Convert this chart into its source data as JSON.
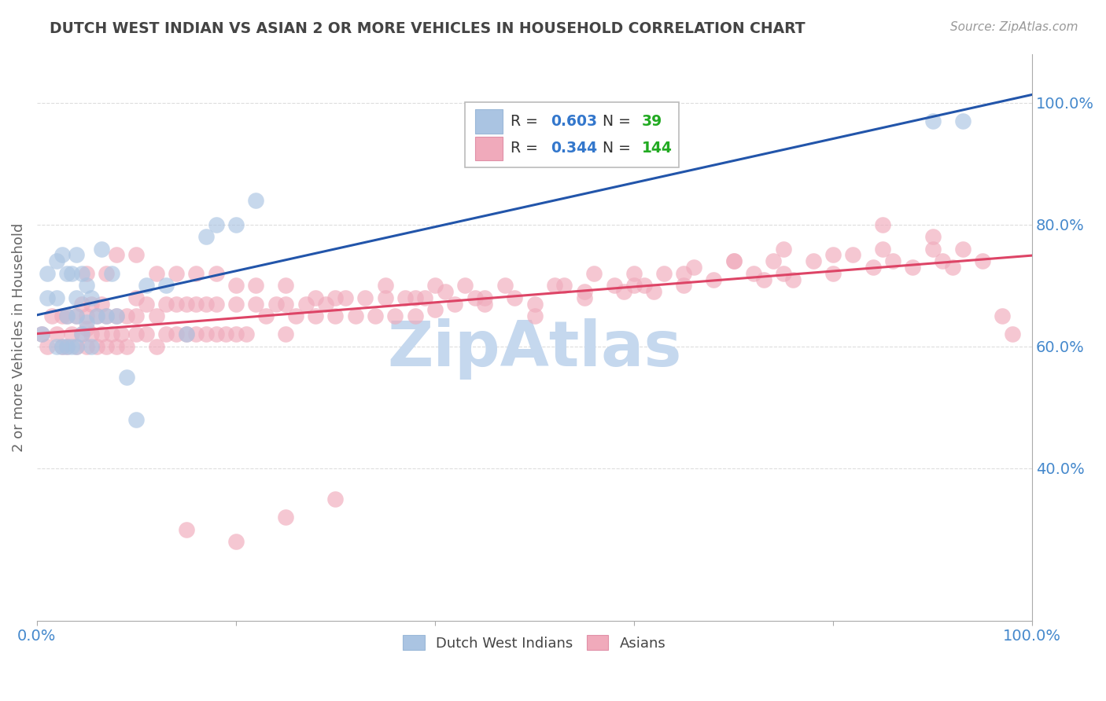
{
  "title": "DUTCH WEST INDIAN VS ASIAN 2 OR MORE VEHICLES IN HOUSEHOLD CORRELATION CHART",
  "source": "Source: ZipAtlas.com",
  "ylabel": "2 or more Vehicles in Household",
  "xlim": [
    0.0,
    1.0
  ],
  "ylim": [
    0.15,
    1.08
  ],
  "xtick_labels": [
    "0.0%",
    "",
    "",
    "",
    "",
    "100.0%"
  ],
  "xtick_vals": [
    0.0,
    0.2,
    0.4,
    0.6,
    0.8,
    1.0
  ],
  "ytick_labels": [
    "40.0%",
    "60.0%",
    "80.0%",
    "100.0%"
  ],
  "ytick_vals": [
    0.4,
    0.6,
    0.8,
    1.0
  ],
  "blue_R": 0.603,
  "blue_N": 39,
  "pink_R": 0.344,
  "pink_N": 144,
  "blue_color": "#aac4e2",
  "pink_color": "#f0aabb",
  "blue_line_color": "#2255aa",
  "pink_line_color": "#dd4466",
  "legend_R_color": "#3377cc",
  "legend_N_color": "#22aa22",
  "axis_tick_color": "#4488cc",
  "background_color": "#ffffff",
  "grid_color": "#dddddd",
  "title_color": "#444444",
  "watermark_color": "#c5d8ee",
  "blue_x": [
    0.005,
    0.01,
    0.01,
    0.02,
    0.02,
    0.02,
    0.025,
    0.025,
    0.03,
    0.03,
    0.03,
    0.035,
    0.035,
    0.04,
    0.04,
    0.04,
    0.04,
    0.045,
    0.045,
    0.05,
    0.05,
    0.055,
    0.055,
    0.06,
    0.065,
    0.07,
    0.075,
    0.08,
    0.09,
    0.1,
    0.11,
    0.13,
    0.15,
    0.17,
    0.18,
    0.2,
    0.22,
    0.9,
    0.93
  ],
  "blue_y": [
    0.62,
    0.68,
    0.72,
    0.6,
    0.68,
    0.74,
    0.6,
    0.75,
    0.6,
    0.65,
    0.72,
    0.6,
    0.72,
    0.6,
    0.65,
    0.68,
    0.75,
    0.62,
    0.72,
    0.64,
    0.7,
    0.6,
    0.68,
    0.65,
    0.76,
    0.65,
    0.72,
    0.65,
    0.55,
    0.48,
    0.7,
    0.7,
    0.62,
    0.78,
    0.8,
    0.8,
    0.84,
    0.97,
    0.97
  ],
  "pink_x": [
    0.005,
    0.01,
    0.015,
    0.02,
    0.025,
    0.025,
    0.03,
    0.03,
    0.035,
    0.04,
    0.04,
    0.045,
    0.045,
    0.05,
    0.05,
    0.05,
    0.055,
    0.055,
    0.06,
    0.06,
    0.065,
    0.065,
    0.07,
    0.07,
    0.075,
    0.08,
    0.08,
    0.085,
    0.09,
    0.09,
    0.1,
    0.1,
    0.1,
    0.11,
    0.11,
    0.12,
    0.12,
    0.13,
    0.13,
    0.14,
    0.14,
    0.15,
    0.15,
    0.16,
    0.16,
    0.17,
    0.17,
    0.18,
    0.18,
    0.19,
    0.2,
    0.2,
    0.21,
    0.22,
    0.23,
    0.24,
    0.25,
    0.25,
    0.26,
    0.27,
    0.28,
    0.29,
    0.3,
    0.31,
    0.32,
    0.33,
    0.34,
    0.35,
    0.36,
    0.37,
    0.38,
    0.39,
    0.4,
    0.41,
    0.42,
    0.43,
    0.44,
    0.45,
    0.47,
    0.48,
    0.5,
    0.52,
    0.53,
    0.55,
    0.56,
    0.58,
    0.59,
    0.6,
    0.61,
    0.62,
    0.63,
    0.65,
    0.66,
    0.68,
    0.7,
    0.72,
    0.73,
    0.74,
    0.75,
    0.76,
    0.78,
    0.8,
    0.82,
    0.84,
    0.85,
    0.86,
    0.88,
    0.9,
    0.91,
    0.92,
    0.93,
    0.95,
    0.97,
    0.98,
    0.05,
    0.07,
    0.08,
    0.1,
    0.12,
    0.14,
    0.16,
    0.18,
    0.2,
    0.22,
    0.25,
    0.28,
    0.3,
    0.35,
    0.38,
    0.4,
    0.45,
    0.5,
    0.55,
    0.6,
    0.65,
    0.7,
    0.75,
    0.8,
    0.85,
    0.9,
    0.15,
    0.2,
    0.25,
    0.3
  ],
  "pink_y": [
    0.62,
    0.6,
    0.65,
    0.62,
    0.6,
    0.65,
    0.6,
    0.65,
    0.62,
    0.6,
    0.65,
    0.62,
    0.67,
    0.6,
    0.63,
    0.65,
    0.62,
    0.67,
    0.6,
    0.65,
    0.62,
    0.67,
    0.6,
    0.65,
    0.62,
    0.6,
    0.65,
    0.62,
    0.6,
    0.65,
    0.62,
    0.65,
    0.68,
    0.62,
    0.67,
    0.6,
    0.65,
    0.62,
    0.67,
    0.62,
    0.67,
    0.62,
    0.67,
    0.62,
    0.67,
    0.62,
    0.67,
    0.62,
    0.67,
    0.62,
    0.62,
    0.67,
    0.62,
    0.67,
    0.65,
    0.67,
    0.62,
    0.67,
    0.65,
    0.67,
    0.65,
    0.67,
    0.65,
    0.68,
    0.65,
    0.68,
    0.65,
    0.68,
    0.65,
    0.68,
    0.65,
    0.68,
    0.66,
    0.69,
    0.67,
    0.7,
    0.68,
    0.67,
    0.7,
    0.68,
    0.67,
    0.7,
    0.7,
    0.69,
    0.72,
    0.7,
    0.69,
    0.72,
    0.7,
    0.69,
    0.72,
    0.7,
    0.73,
    0.71,
    0.74,
    0.72,
    0.71,
    0.74,
    0.72,
    0.71,
    0.74,
    0.72,
    0.75,
    0.73,
    0.76,
    0.74,
    0.73,
    0.76,
    0.74,
    0.73,
    0.76,
    0.74,
    0.65,
    0.62,
    0.72,
    0.72,
    0.75,
    0.75,
    0.72,
    0.72,
    0.72,
    0.72,
    0.7,
    0.7,
    0.7,
    0.68,
    0.68,
    0.7,
    0.68,
    0.7,
    0.68,
    0.65,
    0.68,
    0.7,
    0.72,
    0.74,
    0.76,
    0.75,
    0.8,
    0.78,
    0.3,
    0.28,
    0.32,
    0.35
  ]
}
